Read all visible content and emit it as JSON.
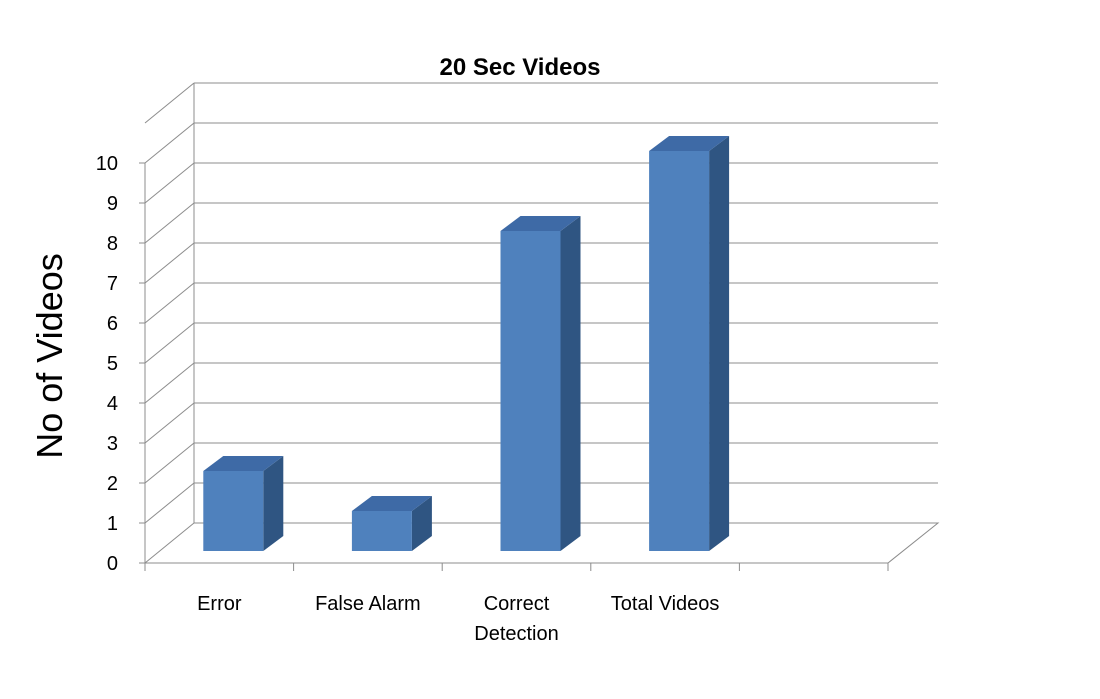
{
  "chart_data": {
    "type": "bar",
    "title": "20 Sec Videos",
    "xlabel": "",
    "ylabel": "No of Videos",
    "categories": [
      "Error",
      "False Alarm",
      "Correct Detection",
      "Total Videos"
    ],
    "category_lines": [
      [
        "Error"
      ],
      [
        "False Alarm"
      ],
      [
        "Correct",
        "Detection"
      ],
      [
        "Total Videos"
      ]
    ],
    "values": [
      2,
      1,
      8,
      10
    ],
    "ylim": [
      0,
      10
    ],
    "yticks": [
      0,
      1,
      2,
      3,
      4,
      5,
      6,
      7,
      8,
      9,
      10
    ],
    "grid": true,
    "style": "3d-column",
    "colors": {
      "front": "#4f81bd",
      "side": "#2f5582",
      "top": "#3e6aa6"
    }
  }
}
